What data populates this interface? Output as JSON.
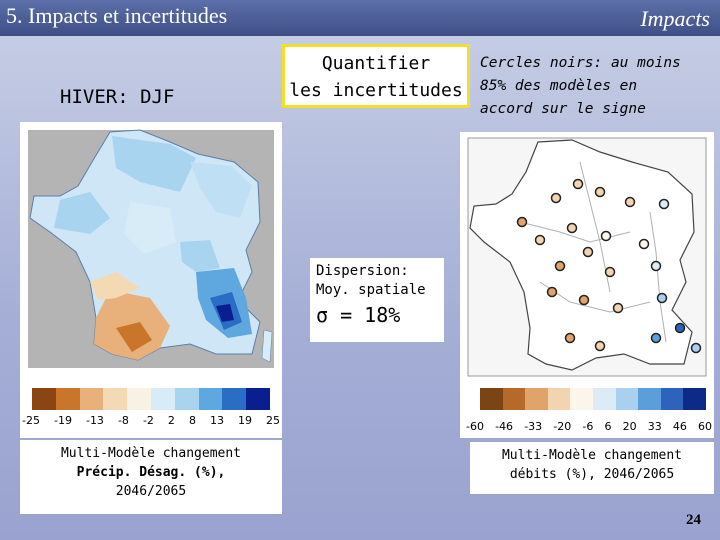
{
  "header": {
    "title": "5. Impacts et incertitudes",
    "section": "Impacts"
  },
  "season_label": "HIVER: DJF",
  "quantify_box": {
    "line1": "Quantifier",
    "line2": "les incertitudes"
  },
  "note": {
    "line1": "Cercles noirs: au moins",
    "line2": "85% des modèles en",
    "line3": "accord sur le signe"
  },
  "left_map": {
    "legend_colors": [
      "#8b4513",
      "#c9752a",
      "#e8b07a",
      "#f4d9b5",
      "#f7f2e4",
      "#d7ecf7",
      "#a9d4ef",
      "#5fa8df",
      "#2b6cc4",
      "#0a1f8f"
    ],
    "tick_labels": [
      "-25",
      "-19",
      "-13",
      "-8",
      "-2",
      "2",
      "8",
      "13",
      "19",
      "25"
    ],
    "caption_line1": "Multi-Modèle changement",
    "caption_line2": "Précip. Désag. (%),",
    "caption_line3": "2046/2065"
  },
  "right_map": {
    "legend_colors": [
      "#7a4414",
      "#b56a2a",
      "#e0a36a",
      "#f3d4b0",
      "#fbf5ea",
      "#dcecf7",
      "#a9d0ee",
      "#5b9ed9",
      "#2d62bd",
      "#0d2a86"
    ],
    "tick_labels": [
      "-60",
      "-46",
      "-33",
      "-20",
      "-6",
      "6",
      "20",
      "33",
      "46",
      "60"
    ],
    "caption_line1": "Multi-Modèle changement",
    "caption_line2": "débits (%), 2046/2065"
  },
  "dispersion": {
    "line1": "Dispersion:",
    "line2": "Moy. spatiale",
    "sigma": "σ = 18%"
  },
  "page_number": "24",
  "colors": {
    "header_bar": "#3f4f86",
    "highlight_border": "#f1e02b"
  }
}
